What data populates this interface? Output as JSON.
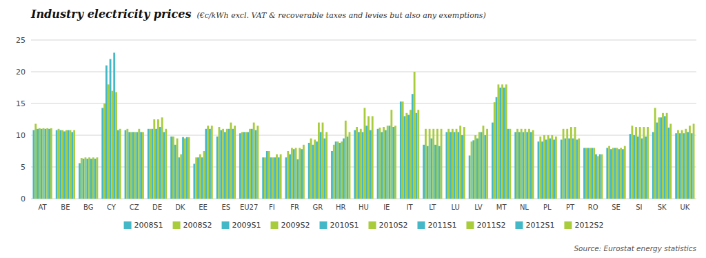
{
  "chart_data": {
    "type": "bar",
    "title": "Industry electricity prices",
    "subtitle": "(€c/kWh excl. VAT & recoverable taxes and levies but also any exemptions)",
    "annotations": [
      "Source: Eurostat energy statistics"
    ],
    "categories": [
      "AT",
      "BE",
      "BG",
      "CY",
      "CZ",
      "DE",
      "DK",
      "EE",
      "ES",
      "EU27",
      "FI",
      "FR",
      "GR",
      "HR",
      "HU",
      "IE",
      "IT",
      "LT",
      "LU",
      "LV",
      "MT",
      "NL",
      "PL",
      "PT",
      "RO",
      "SE",
      "SI",
      "SK",
      "UK"
    ],
    "series": [
      {
        "name": "2008S1",
        "color": "#45B8C8",
        "values": [
          10.8,
          10.8,
          5.6,
          14.3,
          10.8,
          11.0,
          9.8,
          5.5,
          9.8,
          10.3,
          6.5,
          6.5,
          8.8,
          7.5,
          10.8,
          11.0,
          15.3,
          8.5,
          10.5,
          6.8,
          12.0,
          10.5,
          9.0,
          9.3,
          8.0,
          8.0,
          10.2,
          10.5,
          10.3
        ]
      },
      {
        "name": "2008S2",
        "color": "#A8CC3C",
        "values": [
          11.8,
          11.0,
          6.4,
          15.0,
          11.0,
          11.0,
          9.8,
          6.5,
          11.3,
          10.5,
          6.5,
          7.5,
          9.5,
          8.5,
          11.3,
          11.2,
          15.3,
          11.0,
          11.0,
          9.0,
          15.2,
          11.0,
          9.8,
          11.0,
          8.0,
          8.3,
          11.5,
          14.3,
          10.8
        ]
      },
      {
        "name": "2009S1",
        "color": "#45B8C8",
        "values": [
          11.0,
          10.8,
          6.3,
          21.0,
          10.5,
          11.0,
          8.5,
          6.5,
          10.8,
          10.5,
          7.5,
          7.0,
          8.5,
          9.0,
          10.5,
          10.5,
          13.0,
          8.3,
          10.5,
          9.2,
          16.0,
          10.5,
          9.0,
          9.5,
          8.0,
          7.8,
          10.0,
          12.0,
          10.3
        ]
      },
      {
        "name": "2009S2",
        "color": "#A8CC3C",
        "values": [
          11.1,
          10.8,
          6.5,
          18.0,
          10.5,
          12.5,
          9.5,
          7.0,
          11.0,
          10.5,
          7.5,
          8.0,
          9.3,
          9.0,
          11.0,
          11.3,
          13.5,
          11.0,
          11.0,
          10.0,
          18.0,
          11.0,
          10.0,
          11.0,
          8.0,
          8.0,
          11.3,
          12.8,
          10.8
        ]
      },
      {
        "name": "2010S1",
        "color": "#45B8C8",
        "values": [
          11.0,
          10.6,
          6.3,
          22.0,
          10.5,
          11.0,
          6.5,
          6.5,
          10.5,
          10.5,
          6.5,
          7.8,
          9.0,
          8.8,
          10.5,
          10.8,
          13.2,
          9.5,
          10.5,
          9.5,
          17.5,
          10.5,
          9.3,
          9.5,
          8.0,
          8.0,
          9.8,
          12.8,
          10.3
        ]
      },
      {
        "name": "2010S2",
        "color": "#A8CC3C",
        "values": [
          11.1,
          10.8,
          6.5,
          17.0,
          10.5,
          12.5,
          7.0,
          7.5,
          11.0,
          11.0,
          6.5,
          8.0,
          12.0,
          9.0,
          14.3,
          11.5,
          14.0,
          11.0,
          11.0,
          10.5,
          18.0,
          11.0,
          10.0,
          11.3,
          8.0,
          8.0,
          11.3,
          13.5,
          11.0
        ]
      },
      {
        "name": "2011S1",
        "color": "#45B8C8",
        "values": [
          11.0,
          10.8,
          6.3,
          23.0,
          10.5,
          11.3,
          9.7,
          11.0,
          11.0,
          11.0,
          6.5,
          6.2,
          10.5,
          9.5,
          11.5,
          11.5,
          16.5,
          8.5,
          10.5,
          10.5,
          17.5,
          10.5,
          9.5,
          9.5,
          7.0,
          7.8,
          9.5,
          13.0,
          10.5
        ]
      },
      {
        "name": "2011S2",
        "color": "#A8CC3C",
        "values": [
          11.1,
          10.8,
          6.5,
          16.8,
          11.0,
          12.8,
          9.5,
          11.5,
          12.0,
          12.0,
          7.0,
          8.0,
          12.0,
          12.3,
          13.0,
          14.0,
          20.0,
          11.0,
          11.5,
          11.5,
          18.0,
          11.0,
          10.0,
          11.3,
          6.7,
          8.0,
          11.3,
          13.5,
          11.5
        ]
      },
      {
        "name": "2012S1",
        "color": "#45B8C8",
        "values": [
          11.0,
          10.5,
          6.3,
          10.8,
          10.5,
          10.5,
          9.7,
          11.0,
          11.0,
          10.8,
          6.5,
          7.8,
          9.5,
          9.8,
          10.8,
          11.3,
          13.5,
          8.3,
          10.0,
          10.0,
          11.0,
          10.5,
          9.3,
          9.3,
          7.0,
          7.8,
          9.8,
          11.2,
          10.3
        ]
      },
      {
        "name": "2012S2",
        "color": "#A8CC3C",
        "values": [
          11.1,
          10.8,
          6.5,
          11.0,
          10.5,
          11.0,
          9.7,
          11.5,
          11.5,
          11.5,
          7.0,
          8.5,
          10.5,
          10.5,
          13.0,
          11.5,
          14.0,
          11.0,
          11.3,
          11.0,
          11.0,
          10.8,
          9.8,
          9.5,
          7.0,
          8.3,
          11.3,
          11.8,
          11.8
        ]
      }
    ],
    "ylim": [
      0,
      25
    ],
    "yticks": [
      0,
      5,
      10,
      15,
      20,
      25
    ],
    "grid": true,
    "legend": "bottom"
  }
}
